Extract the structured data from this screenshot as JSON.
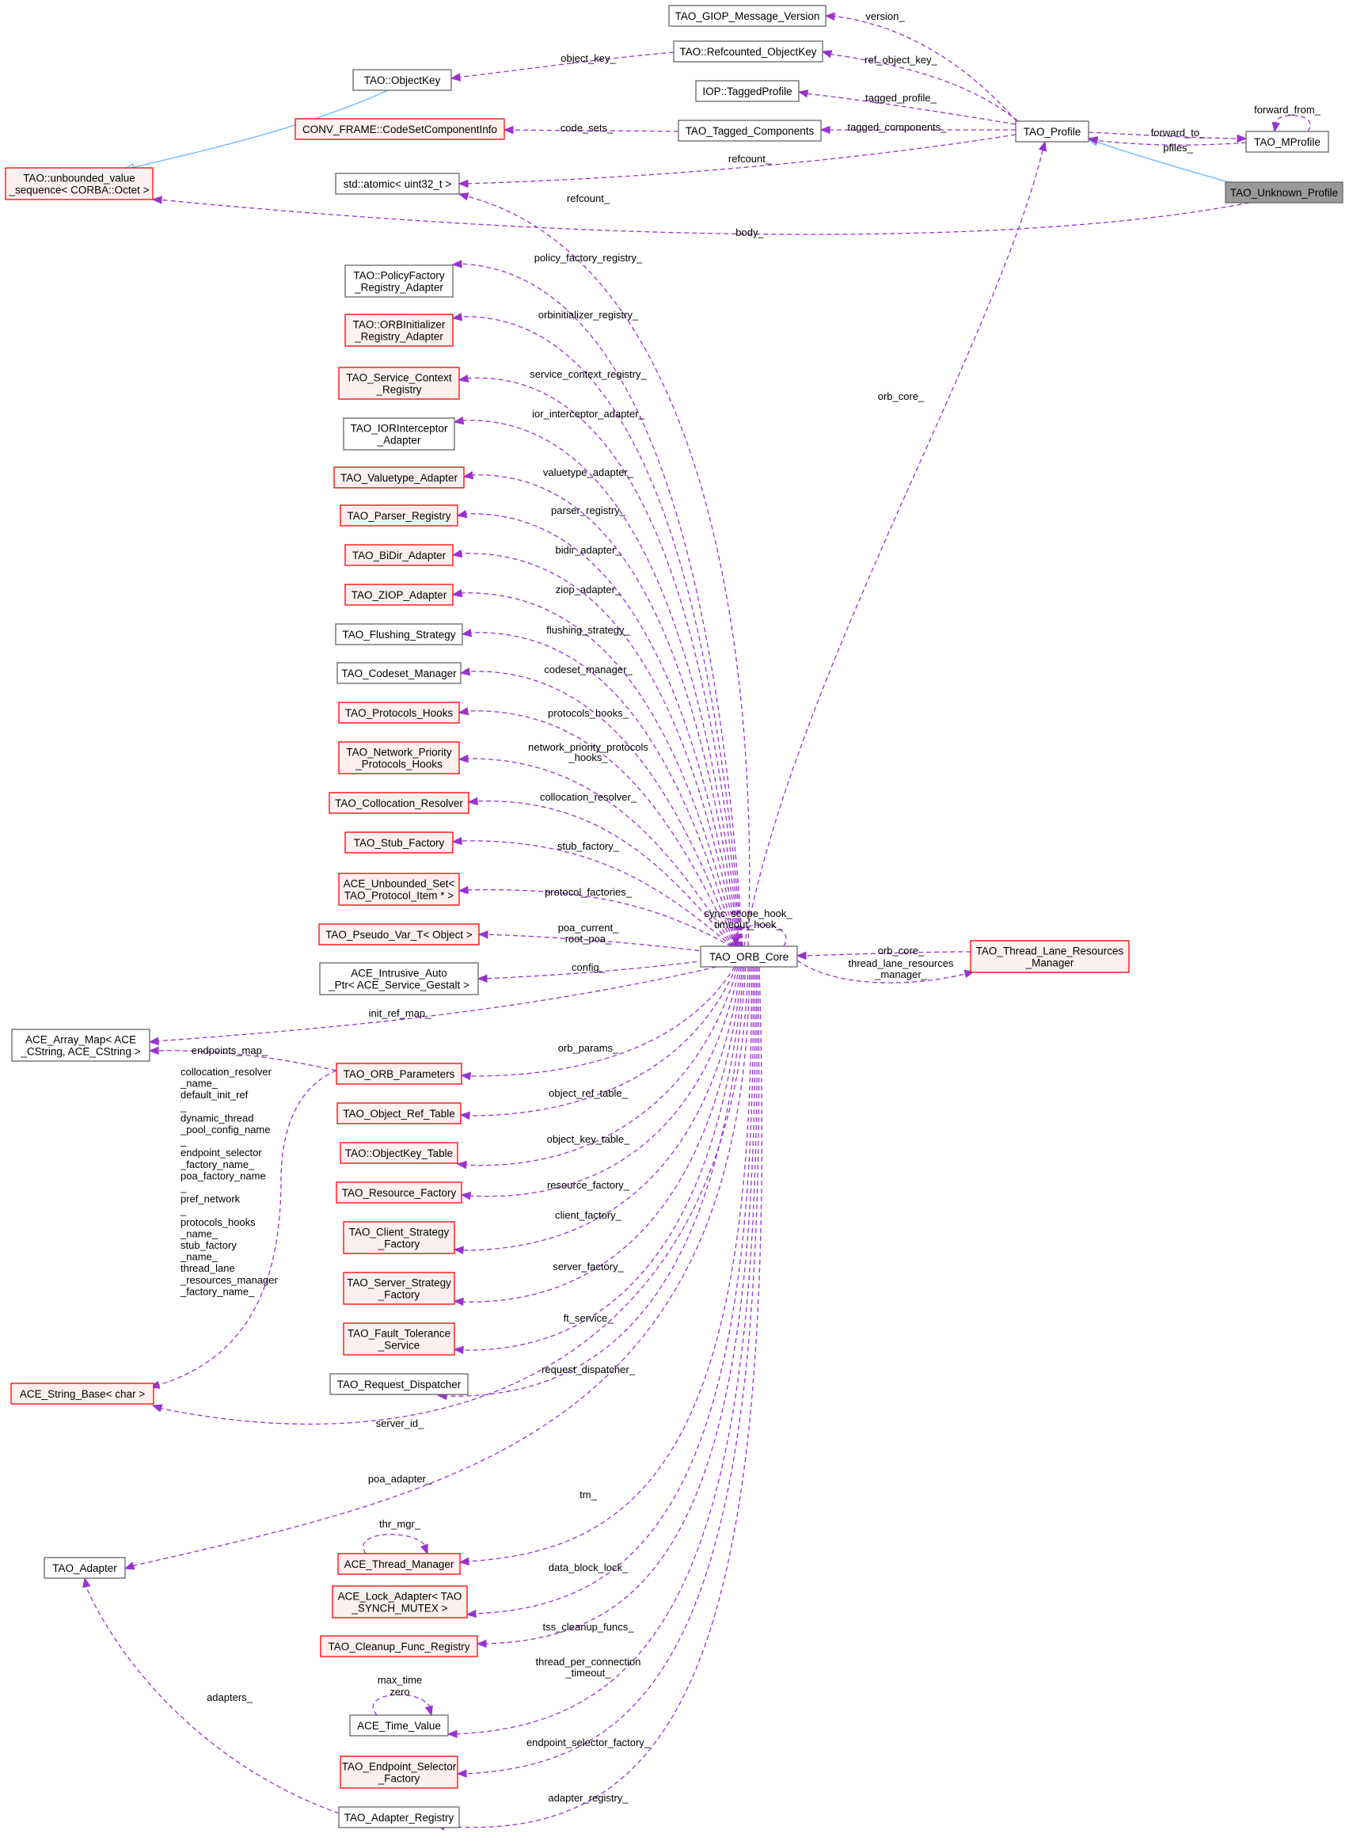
{
  "colors": {
    "normal_fill": "#ffffff",
    "normal_stroke": "#666666",
    "red_fill": "#fff0f0",
    "red_stroke": "#ff0000",
    "current_fill": "#999999",
    "current_stroke": "#666666",
    "edge": "#9a32cd",
    "inherit_edge": "#63b8ff"
  },
  "nodes": [
    {
      "id": "giop",
      "lines": [
        "TAO_GIOP_Message_Version"
      ],
      "style": "normal"
    },
    {
      "id": "refkey",
      "lines": [
        "TAO::Refcounted_ObjectKey"
      ],
      "style": "normal"
    },
    {
      "id": "objkey",
      "lines": [
        "TAO::ObjectKey"
      ],
      "style": "normal"
    },
    {
      "id": "tagprof",
      "lines": [
        "IOP::TaggedProfile"
      ],
      "style": "normal"
    },
    {
      "id": "codeset",
      "lines": [
        "CONV_FRAME::CodeSetComponentInfo"
      ],
      "style": "red"
    },
    {
      "id": "tagcomp",
      "lines": [
        "TAO_Tagged_Components"
      ],
      "style": "normal"
    },
    {
      "id": "profile",
      "lines": [
        "TAO_Profile"
      ],
      "style": "normal"
    },
    {
      "id": "mprofile",
      "lines": [
        "TAO_MProfile"
      ],
      "style": "normal"
    },
    {
      "id": "unbounded",
      "lines": [
        "TAO::unbounded_value",
        "_sequence< CORBA::Octet >"
      ],
      "style": "red"
    },
    {
      "id": "atomic",
      "lines": [
        "std::atomic< uint32_t >"
      ],
      "style": "normal"
    },
    {
      "id": "unknown",
      "lines": [
        "TAO_Unknown_Profile"
      ],
      "style": "current"
    },
    {
      "id": "policyfac",
      "lines": [
        "TAO::PolicyFactory",
        "_Registry_Adapter"
      ],
      "style": "normal"
    },
    {
      "id": "orbinit",
      "lines": [
        "TAO::ORBInitializer",
        "_Registry_Adapter"
      ],
      "style": "red"
    },
    {
      "id": "svcctx",
      "lines": [
        "TAO_Service_Context",
        "_Registry"
      ],
      "style": "red"
    },
    {
      "id": "iorint",
      "lines": [
        "TAO_IORInterceptor",
        "_Adapter"
      ],
      "style": "normal"
    },
    {
      "id": "valuetype",
      "lines": [
        "TAO_Valuetype_Adapter"
      ],
      "style": "red"
    },
    {
      "id": "parser",
      "lines": [
        "TAO_Parser_Registry"
      ],
      "style": "red"
    },
    {
      "id": "bidir",
      "lines": [
        "TAO_BiDir_Adapter"
      ],
      "style": "red"
    },
    {
      "id": "ziop",
      "lines": [
        "TAO_ZIOP_Adapter"
      ],
      "style": "red"
    },
    {
      "id": "flushing",
      "lines": [
        "TAO_Flushing_Strategy"
      ],
      "style": "normal"
    },
    {
      "id": "codesetmgr",
      "lines": [
        "TAO_Codeset_Manager"
      ],
      "style": "normal"
    },
    {
      "id": "protohooks",
      "lines": [
        "TAO_Protocols_Hooks"
      ],
      "style": "red"
    },
    {
      "id": "netprio",
      "lines": [
        "TAO_Network_Priority",
        "_Protocols_Hooks"
      ],
      "style": "red"
    },
    {
      "id": "colloc",
      "lines": [
        "TAO_Collocation_Resolver"
      ],
      "style": "red"
    },
    {
      "id": "stubfac",
      "lines": [
        "TAO_Stub_Factory"
      ],
      "style": "red"
    },
    {
      "id": "aceset",
      "lines": [
        "ACE_Unbounded_Set<",
        "TAO_Protocol_Item * >"
      ],
      "style": "red"
    },
    {
      "id": "pseudo",
      "lines": [
        "TAO_Pseudo_Var_T< Object >"
      ],
      "style": "red"
    },
    {
      "id": "intrusive",
      "lines": [
        "ACE_Intrusive_Auto",
        "_Ptr< ACE_Service_Gestalt >"
      ],
      "style": "normal"
    },
    {
      "id": "orbcore",
      "lines": [
        "TAO_ORB_Core"
      ],
      "style": "normal"
    },
    {
      "id": "threadlane",
      "lines": [
        "TAO_Thread_Lane_Resources",
        "_Manager"
      ],
      "style": "red"
    },
    {
      "id": "arraymap",
      "lines": [
        "ACE_Array_Map< ACE",
        "_CString, ACE_CString >"
      ],
      "style": "normal"
    },
    {
      "id": "orbparams",
      "lines": [
        "TAO_ORB_Parameters"
      ],
      "style": "red"
    },
    {
      "id": "objref",
      "lines": [
        "TAO_Object_Ref_Table"
      ],
      "style": "red"
    },
    {
      "id": "objkeytable",
      "lines": [
        "TAO::ObjectKey_Table"
      ],
      "style": "red"
    },
    {
      "id": "resfac",
      "lines": [
        "TAO_Resource_Factory"
      ],
      "style": "red"
    },
    {
      "id": "clientstrat",
      "lines": [
        "TAO_Client_Strategy",
        "_Factory"
      ],
      "style": "red"
    },
    {
      "id": "serverstrat",
      "lines": [
        "TAO_Server_Strategy",
        "_Factory"
      ],
      "style": "red"
    },
    {
      "id": "fault",
      "lines": [
        "TAO_Fault_Tolerance",
        "_Service"
      ],
      "style": "red"
    },
    {
      "id": "reqdisp",
      "lines": [
        "TAO_Request_Dispatcher"
      ],
      "style": "normal"
    },
    {
      "id": "strbase",
      "lines": [
        "ACE_String_Base< char >"
      ],
      "style": "red"
    },
    {
      "id": "adapter",
      "lines": [
        "TAO_Adapter"
      ],
      "style": "normal"
    },
    {
      "id": "threadmgr",
      "lines": [
        "ACE_Thread_Manager"
      ],
      "style": "red"
    },
    {
      "id": "lockadapter",
      "lines": [
        "ACE_Lock_Adapter< TAO",
        "_SYNCH_MUTEX >"
      ],
      "style": "red"
    },
    {
      "id": "cleanup",
      "lines": [
        "TAO_Cleanup_Func_Registry"
      ],
      "style": "red"
    },
    {
      "id": "timevalue",
      "lines": [
        "ACE_Time_Value"
      ],
      "style": "normal"
    },
    {
      "id": "endpointsel",
      "lines": [
        "TAO_Endpoint_Selector",
        "_Factory"
      ],
      "style": "red"
    },
    {
      "id": "adapterreg",
      "lines": [
        "TAO_Adapter_Registry"
      ],
      "style": "normal"
    }
  ],
  "edges": [
    {
      "id": "e-version",
      "lines": [
        "version_"
      ]
    },
    {
      "id": "e-refobjkey",
      "lines": [
        "ref_object_key_"
      ]
    },
    {
      "id": "e-objkey",
      "lines": [
        "object_key_"
      ]
    },
    {
      "id": "e-tagged",
      "lines": [
        "tagged_profile_"
      ]
    },
    {
      "id": "e-codesets",
      "lines": [
        "code_sets_"
      ]
    },
    {
      "id": "e-tagcomp",
      "lines": [
        "tagged_components_"
      ]
    },
    {
      "id": "e-forwardto",
      "lines": [
        "forward_to_"
      ]
    },
    {
      "id": "e-pfiles",
      "lines": [
        "pfiles_"
      ]
    },
    {
      "id": "e-forwardfrom",
      "lines": [
        "forward_from_"
      ]
    },
    {
      "id": "e-refcount1",
      "lines": [
        "refcount_"
      ]
    },
    {
      "id": "e-refcount2",
      "lines": [
        "refcount_"
      ]
    },
    {
      "id": "e-body",
      "lines": [
        "body_"
      ]
    },
    {
      "id": "e-orbcore1",
      "lines": [
        "orb_core_"
      ]
    },
    {
      "id": "e-policy",
      "lines": [
        "policy_factory_registry_"
      ]
    },
    {
      "id": "e-orbinit",
      "lines": [
        "orbinitializer_registry_"
      ]
    },
    {
      "id": "e-svcctx",
      "lines": [
        "service_context_registry_"
      ]
    },
    {
      "id": "e-ior",
      "lines": [
        "ior_interceptor_adapter_"
      ]
    },
    {
      "id": "e-valuetype",
      "lines": [
        "valuetype_adapter_"
      ]
    },
    {
      "id": "e-parser",
      "lines": [
        "parser_registry_"
      ]
    },
    {
      "id": "e-bidir",
      "lines": [
        "bidir_adapter_"
      ]
    },
    {
      "id": "e-ziop",
      "lines": [
        "ziop_adapter_"
      ]
    },
    {
      "id": "e-flushing",
      "lines": [
        "flushing_strategy_"
      ]
    },
    {
      "id": "e-codesetmgr",
      "lines": [
        "codeset_manager_"
      ]
    },
    {
      "id": "e-protohooks",
      "lines": [
        "protocols_hooks_"
      ]
    },
    {
      "id": "e-netprio",
      "lines": [
        "network_priority_protocols",
        "_hooks_"
      ]
    },
    {
      "id": "e-colloc",
      "lines": [
        "collocation_resolver_"
      ]
    },
    {
      "id": "e-stub",
      "lines": [
        "stub_factory_"
      ]
    },
    {
      "id": "e-protofac",
      "lines": [
        "protocol_factories_"
      ]
    },
    {
      "id": "e-poacurrent",
      "lines": [
        "poa_current_",
        "root_poa_"
      ]
    },
    {
      "id": "e-config",
      "lines": [
        "config_"
      ]
    },
    {
      "id": "e-selfloop",
      "lines": [
        "sync_scope_hook_",
        "timeout_hook_"
      ]
    },
    {
      "id": "e-orbcore2",
      "lines": [
        "orb_core_"
      ]
    },
    {
      "id": "e-threadlane",
      "lines": [
        "thread_lane_resources",
        "_manager_"
      ]
    },
    {
      "id": "e-initref",
      "lines": [
        "init_ref_map_"
      ]
    },
    {
      "id": "e-endpoints",
      "lines": [
        "endpoints_map_"
      ]
    },
    {
      "id": "e-orbparams",
      "lines": [
        "orb_params_"
      ]
    },
    {
      "id": "e-objreftable",
      "lines": [
        "object_ref_table_"
      ]
    },
    {
      "id": "e-objkeytable",
      "lines": [
        "object_key_table_"
      ]
    },
    {
      "id": "e-resfac",
      "lines": [
        "resource_factory_"
      ]
    },
    {
      "id": "e-clientfac",
      "lines": [
        "client_factory_"
      ]
    },
    {
      "id": "e-serverfac",
      "lines": [
        "server_factory_"
      ]
    },
    {
      "id": "e-ft",
      "lines": [
        "ft_service_"
      ]
    },
    {
      "id": "e-reqdisp",
      "lines": [
        "request_dispatcher_"
      ]
    },
    {
      "id": "e-strnames",
      "lines": [
        "collocation_resolver",
        "_name_",
        "default_init_ref",
        "_",
        "dynamic_thread",
        "_pool_config_name",
        "_",
        "endpoint_selector",
        "_factory_name_",
        "poa_factory_name",
        "_",
        "pref_network",
        "_",
        "protocols_hooks",
        "_name_",
        "stub_factory",
        "_name_",
        "thread_lane",
        "_resources_manager",
        "_factory_name_"
      ]
    },
    {
      "id": "e-serverid",
      "lines": [
        "server_id_"
      ]
    },
    {
      "id": "e-poaadapter",
      "lines": [
        "poa_adapter_"
      ]
    },
    {
      "id": "e-thrmgr",
      "lines": [
        "thr_mgr_"
      ]
    },
    {
      "id": "e-tm",
      "lines": [
        "tm_"
      ]
    },
    {
      "id": "e-datablock",
      "lines": [
        "data_block_lock_"
      ]
    },
    {
      "id": "e-tss",
      "lines": [
        "tss_cleanup_funcs_"
      ]
    },
    {
      "id": "e-maxtime",
      "lines": [
        "max_time",
        "zero"
      ]
    },
    {
      "id": "e-threadconn",
      "lines": [
        "thread_per_connection",
        "_timeout_"
      ]
    },
    {
      "id": "e-endpointsel",
      "lines": [
        "endpoint_selector_factory_"
      ]
    },
    {
      "id": "e-adapterreg",
      "lines": [
        "adapter_registry_"
      ]
    },
    {
      "id": "e-adapters",
      "lines": [
        "adapters_"
      ]
    }
  ]
}
